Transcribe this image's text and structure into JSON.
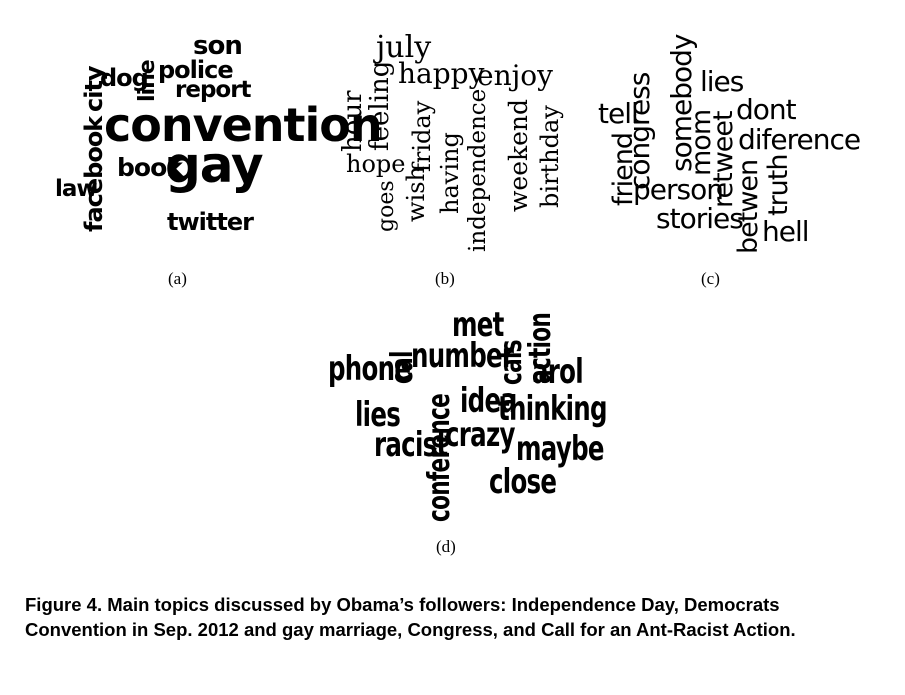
{
  "panels": [
    {
      "label": "(a)",
      "words": [
        "son",
        "city",
        "dog",
        "line",
        "police",
        "report",
        "facebook",
        "convention",
        "book",
        "gay",
        "law",
        "twitter"
      ]
    },
    {
      "label": "(b)",
      "words": [
        "july",
        "happy",
        "enjoy",
        "hour",
        "feeling",
        "hope",
        "goes",
        "wish",
        "friday",
        "having",
        "independence",
        "weekend",
        "birthday"
      ]
    },
    {
      "label": "(c)",
      "words": [
        "somebody",
        "lies",
        "tell",
        "congress",
        "friend",
        "dont",
        "mom",
        "retweet",
        "diference",
        "person",
        "stories",
        "betwen",
        "truth",
        "hell"
      ]
    },
    {
      "label": "(d)",
      "words": [
        "met",
        "action",
        "phone",
        "cal",
        "number",
        "cals",
        "arol",
        "conference",
        "idea",
        "thinking",
        "lies",
        "racist",
        "crazy",
        "maybe",
        "close"
      ]
    }
  ],
  "caption": "Figure 4.  Main topics discussed by Obama’s followers: Independence Day, Democrats Convention in Sep. 2012 and gay marriage, Congress, and Call for an Ant-Racist Action."
}
